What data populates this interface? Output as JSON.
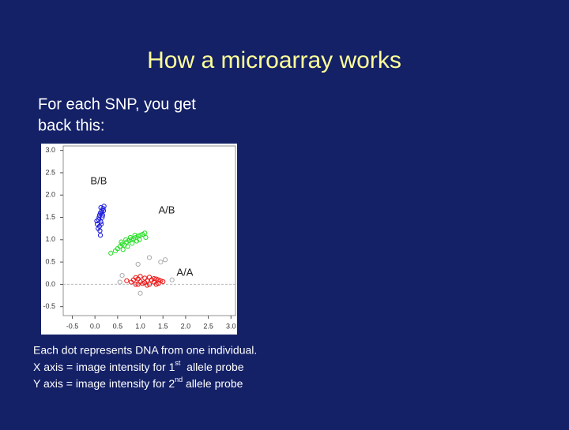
{
  "slide": {
    "title": "How a microarray works",
    "intro": [
      "For each SNP, you get",
      "back this:"
    ],
    "caption": {
      "line1": "Each dot represents DNA from one individual.",
      "line2": [
        "X axis = image intensity for 1",
        "st",
        "  allele probe"
      ],
      "line3": [
        "Y axis = image intensity for 2",
        "nd",
        " allele probe"
      ]
    }
  },
  "chart_data": {
    "type": "scatter",
    "xlim": [
      -0.7,
      3.1
    ],
    "ylim": [
      -0.7,
      3.1
    ],
    "xticks": [
      -0.5,
      {
        "value": 0,
        "label": "0.0"
      },
      0.5,
      {
        "value": 1,
        "label": "1.0"
      },
      1.5,
      {
        "value": 2,
        "label": "2.0"
      },
      2.5,
      {
        "value": 3,
        "label": "3.0"
      }
    ],
    "yticks": [
      {
        "value": 3,
        "label": "3.0"
      },
      2.5,
      {
        "value": 2,
        "label": "2.0"
      },
      1.5,
      {
        "value": 1,
        "label": "1.0"
      },
      0.5,
      {
        "value": 0,
        "label": "0.0"
      },
      -0.5
    ],
    "hline": 0,
    "series": [
      {
        "name": "B/B",
        "color": "#1a1adc",
        "x": [
          0.05,
          0.08,
          0.1,
          0.12,
          0.15,
          0.18,
          0.2,
          0.1,
          0.13,
          0.16,
          0.07,
          0.11,
          0.14,
          0.17,
          0.12,
          0.09,
          0.15,
          0.19,
          0.04,
          0.13
        ],
        "values": [
          1.35,
          1.45,
          1.55,
          1.6,
          1.65,
          1.7,
          1.75,
          1.3,
          1.4,
          1.5,
          1.25,
          1.2,
          1.35,
          1.55,
          1.1,
          1.5,
          1.6,
          1.65,
          1.42,
          1.72
        ]
      },
      {
        "name": "A/B",
        "color": "#22dd22",
        "x": [
          0.35,
          0.45,
          0.5,
          0.55,
          0.6,
          0.65,
          0.7,
          0.75,
          0.8,
          0.85,
          0.9,
          0.95,
          1.0,
          1.05,
          1.1,
          0.62,
          0.72,
          0.82,
          0.92,
          0.58,
          0.68,
          0.78,
          0.88,
          0.98,
          1.12
        ],
        "values": [
          0.7,
          0.75,
          0.8,
          0.85,
          0.9,
          0.88,
          0.95,
          0.98,
          1.0,
          1.02,
          1.05,
          1.08,
          1.1,
          1.12,
          1.15,
          0.78,
          0.85,
          0.92,
          0.97,
          0.95,
          1.0,
          1.05,
          1.1,
          1.0,
          1.05
        ]
      },
      {
        "name": "A/A",
        "color": "#ee1111",
        "x": [
          0.7,
          0.8,
          0.85,
          0.9,
          0.95,
          1.0,
          1.05,
          1.1,
          1.15,
          1.2,
          1.25,
          1.3,
          1.35,
          1.4,
          1.45,
          1.5,
          0.9,
          1.0,
          1.1,
          1.2,
          1.3,
          1.4,
          0.95,
          1.15,
          1.35
        ],
        "values": [
          0.08,
          0.05,
          0.1,
          0.0,
          0.12,
          0.06,
          0.02,
          0.14,
          0.08,
          0.0,
          0.1,
          0.05,
          0.12,
          0.02,
          0.08,
          0.06,
          0.15,
          0.18,
          0.04,
          0.16,
          0.13,
          0.1,
          0.0,
          -0.02,
          0.0
        ]
      },
      {
        "color": "#aaaaaa",
        "x": [
          1.2,
          1.45,
          1.55,
          0.6,
          1.0,
          0.55,
          1.7,
          0.95
        ],
        "values": [
          0.6,
          0.5,
          0.55,
          0.2,
          -0.2,
          0.05,
          0.1,
          0.45
        ]
      }
    ]
  }
}
